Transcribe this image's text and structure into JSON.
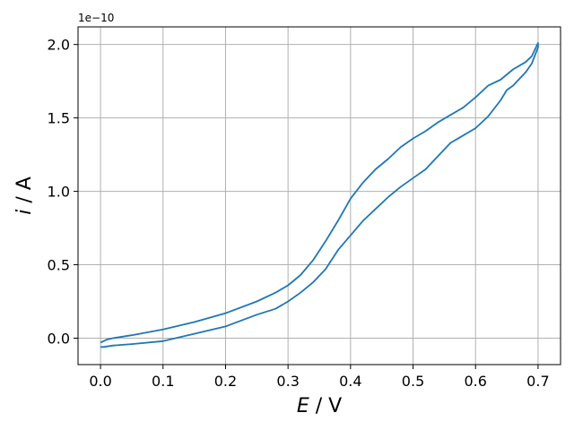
{
  "chart_data": {
    "type": "line",
    "title": "",
    "xlabel_var": "E",
    "xlabel_unit": "/ V",
    "ylabel_var": "i",
    "ylabel_unit": "/ A",
    "y_offset_label": "1e−10",
    "y_scale": 1e-10,
    "xlim": [
      -0.036,
      0.736
    ],
    "ylim": [
      -0.18,
      2.12
    ],
    "xticks": [
      0.0,
      0.1,
      0.2,
      0.3,
      0.4,
      0.5,
      0.6,
      0.7
    ],
    "xtick_labels": [
      "0.0",
      "0.1",
      "0.2",
      "0.3",
      "0.4",
      "0.5",
      "0.6",
      "0.7"
    ],
    "yticks": [
      0.0,
      0.5,
      1.0,
      1.5,
      2.0
    ],
    "ytick_labels": [
      "0.0",
      "0.5",
      "1.0",
      "1.5",
      "2.0"
    ],
    "grid": true,
    "series": [
      {
        "color": "#1f77b4",
        "x": [
          0.0,
          0.01,
          0.02,
          0.05,
          0.1,
          0.15,
          0.2,
          0.25,
          0.28,
          0.3,
          0.32,
          0.34,
          0.36,
          0.38,
          0.4,
          0.42,
          0.44,
          0.46,
          0.48,
          0.5,
          0.52,
          0.54,
          0.56,
          0.58,
          0.6,
          0.62,
          0.64,
          0.66,
          0.68,
          0.69,
          0.7,
          0.7,
          0.69,
          0.68,
          0.66,
          0.65,
          0.64,
          0.62,
          0.6,
          0.58,
          0.56,
          0.54,
          0.52,
          0.5,
          0.48,
          0.46,
          0.44,
          0.42,
          0.4,
          0.38,
          0.36,
          0.34,
          0.32,
          0.3,
          0.28,
          0.25,
          0.2,
          0.15,
          0.1,
          0.05,
          0.02,
          0.005,
          0.0
        ],
        "y": [
          -0.03,
          -0.01,
          0.0,
          0.02,
          0.06,
          0.11,
          0.17,
          0.25,
          0.31,
          0.36,
          0.43,
          0.53,
          0.66,
          0.8,
          0.95,
          1.06,
          1.15,
          1.22,
          1.3,
          1.36,
          1.41,
          1.47,
          1.52,
          1.57,
          1.64,
          1.72,
          1.76,
          1.83,
          1.88,
          1.92,
          2.01,
          1.98,
          1.87,
          1.81,
          1.72,
          1.69,
          1.62,
          1.51,
          1.43,
          1.38,
          1.33,
          1.24,
          1.15,
          1.09,
          1.03,
          0.96,
          0.88,
          0.8,
          0.7,
          0.6,
          0.47,
          0.38,
          0.31,
          0.25,
          0.2,
          0.16,
          0.08,
          0.03,
          -0.02,
          -0.04,
          -0.05,
          -0.06,
          -0.06
        ]
      }
    ]
  }
}
